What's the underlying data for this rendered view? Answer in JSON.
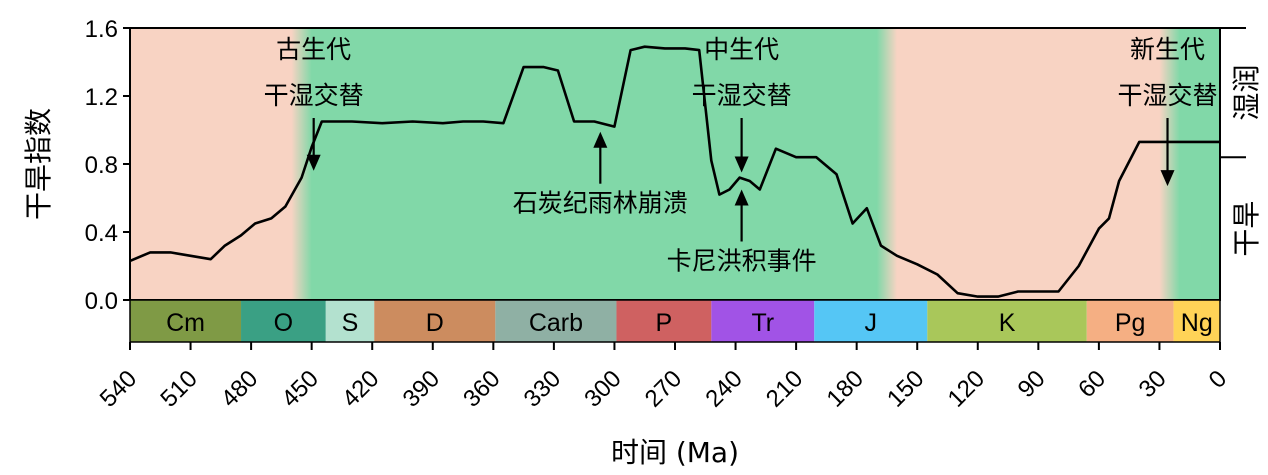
{
  "chart_data": {
    "type": "line",
    "xlabel": "时间 (Ma)",
    "ylabel": "干旱指数",
    "xlim": [
      540,
      0
    ],
    "ylim": [
      0.0,
      1.6
    ],
    "yticks": [
      "0.0",
      "0.4",
      "0.8",
      "1.2",
      "1.6"
    ],
    "xticks": [
      "540",
      "510",
      "480",
      "450",
      "420",
      "390",
      "360",
      "330",
      "300",
      "270",
      "240",
      "210",
      "180",
      "150",
      "120",
      "90",
      "60",
      "30",
      "0"
    ],
    "line_color": "#000000",
    "series": [
      {
        "x": [
          540,
          530,
          520,
          510,
          500,
          493,
          485,
          478,
          470,
          463,
          455,
          450,
          445,
          440,
          430,
          415,
          400,
          385,
          375,
          365,
          355,
          345,
          335,
          328,
          320,
          310,
          300,
          292,
          285,
          275,
          265,
          258,
          252,
          248,
          243,
          238,
          233,
          228,
          220,
          210,
          200,
          190,
          182,
          175,
          168,
          160,
          150,
          140,
          130,
          120,
          110,
          100,
          90,
          80,
          70,
          60,
          55,
          50,
          40,
          30,
          20,
          10,
          0
        ],
        "y": [
          0.23,
          0.28,
          0.28,
          0.26,
          0.24,
          0.32,
          0.38,
          0.45,
          0.48,
          0.55,
          0.72,
          0.9,
          1.05,
          1.05,
          1.05,
          1.04,
          1.05,
          1.04,
          1.05,
          1.05,
          1.04,
          1.37,
          1.37,
          1.35,
          1.05,
          1.05,
          1.02,
          1.47,
          1.49,
          1.48,
          1.48,
          1.47,
          0.82,
          0.62,
          0.65,
          0.72,
          0.7,
          0.65,
          0.89,
          0.84,
          0.84,
          0.74,
          0.45,
          0.54,
          0.32,
          0.26,
          0.21,
          0.15,
          0.04,
          0.02,
          0.02,
          0.05,
          0.05,
          0.05,
          0.2,
          0.42,
          0.48,
          0.7,
          0.93,
          0.93,
          0.93,
          0.93,
          0.93
        ]
      }
    ],
    "climate_bands": [
      {
        "from": 540,
        "to": 460,
        "regime": "arid"
      },
      {
        "from": 450,
        "to": 240,
        "regime": "humid"
      },
      {
        "from": 230,
        "to": 170,
        "regime": "humid"
      },
      {
        "from": 160,
        "to": 30,
        "regime": "arid"
      },
      {
        "from": 20,
        "to": 0,
        "regime": "humid"
      }
    ],
    "band_colors": {
      "arid": "#f8d3c3",
      "humid": "#81d8a8"
    },
    "right_axis": {
      "humid_label": "湿润",
      "arid_label": "干旱",
      "humid_color": "#2e8b2e",
      "arid_color": "#e7935a",
      "boundary": 0.84
    },
    "periods": [
      {
        "label": "Cm",
        "from": 540,
        "to": 485,
        "color": "#7f9a45"
      },
      {
        "label": "O",
        "from": 485,
        "to": 443,
        "color": "#3aa084"
      },
      {
        "label": "S",
        "from": 443,
        "to": 419,
        "color": "#b3e1cf"
      },
      {
        "label": "D",
        "from": 419,
        "to": 359,
        "color": "#cc8c5f"
      },
      {
        "label": "Carb",
        "from": 359,
        "to": 299,
        "color": "#8fb0a4"
      },
      {
        "label": "P",
        "from": 299,
        "to": 252,
        "color": "#cf6161"
      },
      {
        "label": "Tr",
        "from": 252,
        "to": 201,
        "color": "#a153e6"
      },
      {
        "label": "J",
        "from": 201,
        "to": 145,
        "color": "#55c6f5"
      },
      {
        "label": "K",
        "from": 145,
        "to": 66,
        "color": "#a9c75a"
      },
      {
        "label": "Pg",
        "from": 66,
        "to": 23,
        "color": "#f5af83"
      },
      {
        "label": "Ng",
        "from": 23,
        "to": 0,
        "color": "#ffd357"
      }
    ],
    "annotations": [
      {
        "lines": [
          "古生代",
          "干湿交替"
        ],
        "x": 449,
        "arrow_direction": "down",
        "arrow_to_y": 0.76
      },
      {
        "lines": [
          "中生代",
          "干湿交替"
        ],
        "x": 237,
        "arrow_direction": "down",
        "arrow_to_y": 0.75
      },
      {
        "lines": [
          "新生代",
          "干湿交替"
        ],
        "x": 26,
        "arrow_direction": "down",
        "arrow_to_y": 0.67
      },
      {
        "lines": [
          "石炭纪雨林崩溃"
        ],
        "x": 307,
        "arrow_direction": "up",
        "arrow_to_y": 0.99
      },
      {
        "lines": [
          "卡尼洪积事件"
        ],
        "x": 237,
        "arrow_direction": "up",
        "arrow_to_y": 0.65
      }
    ]
  }
}
